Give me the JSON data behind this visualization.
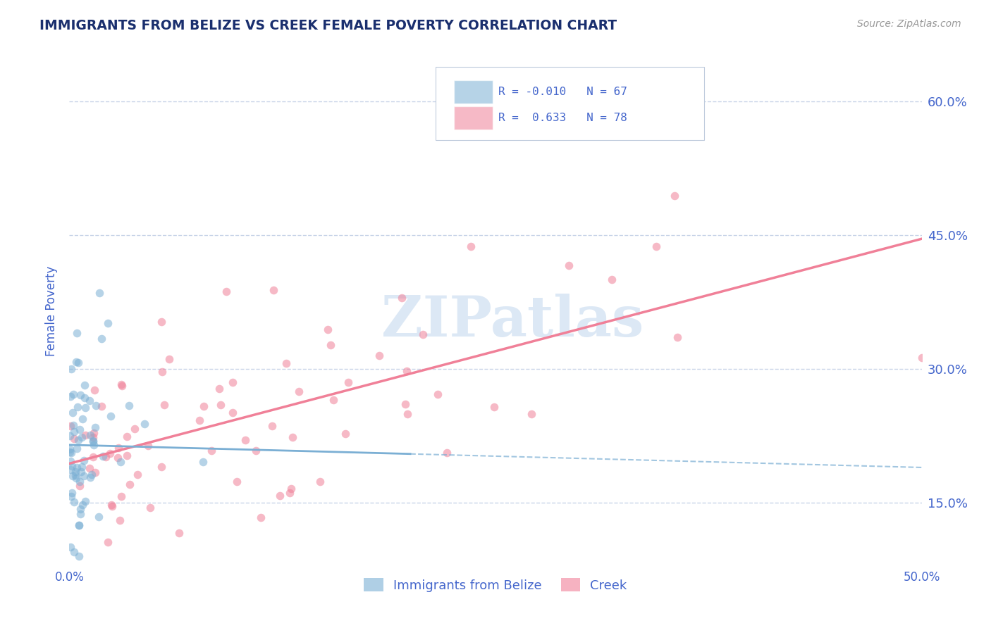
{
  "title": "IMMIGRANTS FROM BELIZE VS CREEK FEMALE POVERTY CORRELATION CHART",
  "source": "Source: ZipAtlas.com",
  "ylabel": "Female Poverty",
  "xlim": [
    0.0,
    0.5
  ],
  "ylim": [
    0.08,
    0.65
  ],
  "yticks": [
    0.15,
    0.3,
    0.45,
    0.6
  ],
  "ytick_labels": [
    "15.0%",
    "30.0%",
    "45.0%",
    "60.0%"
  ],
  "xtick_positions": [
    0.0,
    0.5
  ],
  "xtick_labels": [
    "0.0%",
    "50.0%"
  ],
  "bottom_legend": [
    "Immigrants from Belize",
    "Creek"
  ],
  "blue_color": "#7bafd4",
  "pink_color": "#f08098",
  "blue_scatter_color": "#7bafd4",
  "pink_scatter_color": "#f08098",
  "title_color": "#1a2f6e",
  "axis_color": "#4466cc",
  "watermark": "ZIPatlas",
  "watermark_color": "#dce8f5",
  "blue_R": -0.01,
  "pink_R": 0.633,
  "blue_N": 67,
  "pink_N": 78,
  "grid_color": "#c8d4e8",
  "background_color": "#ffffff",
  "legend_box_color": "#e8f0f8",
  "legend_border_color": "#c0ccdd"
}
